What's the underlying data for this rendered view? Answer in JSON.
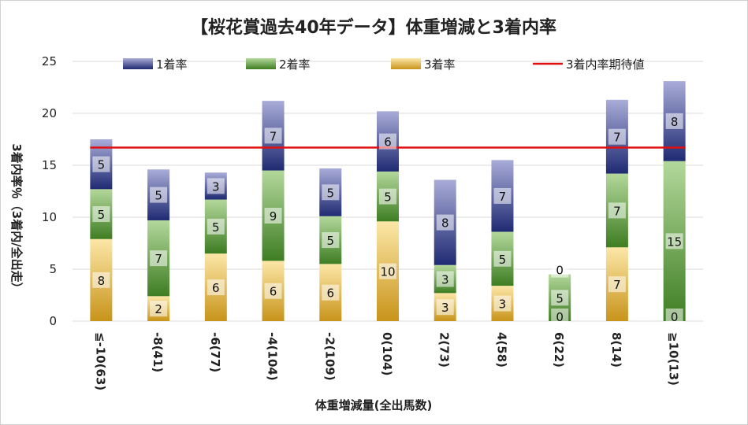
{
  "chart_data": {
    "type": "bar",
    "stacked": true,
    "title": "【桜花賞過去40年データ】体重増減と3着内率",
    "xlabel": "体重増減量(全出馬数)",
    "ylabel": "3着内率％（3着内/全出走）",
    "ylim": [
      0,
      25
    ],
    "yticks": [
      0,
      5,
      10,
      15,
      20,
      25
    ],
    "grid": true,
    "legend_position": "top",
    "categories": [
      "≦-10(63)",
      "-8(41)",
      "-6(77)",
      "-4(104)",
      "-2(109)",
      "0(104)",
      "2(73)",
      "4(58)",
      "6(22)",
      "8(14)",
      "≧10(13)"
    ],
    "series": [
      {
        "name": "3着率",
        "values": [
          7.9,
          2.4,
          6.5,
          5.8,
          5.5,
          9.6,
          2.7,
          3.4,
          0,
          7.1,
          0
        ],
        "labels": [
          "8",
          "2",
          "6",
          "6",
          "6",
          "10",
          "3",
          "3",
          "0",
          "7",
          "0"
        ],
        "color": "#e8b84a"
      },
      {
        "name": "2着率",
        "values": [
          4.8,
          7.3,
          5.2,
          8.7,
          4.6,
          4.8,
          2.7,
          5.2,
          4.5,
          7.1,
          15.4
        ],
        "labels": [
          "5",
          "7",
          "5",
          "9",
          "5",
          "5",
          "3",
          "5",
          "5",
          "7",
          "15"
        ],
        "color": "#5e9a3a"
      },
      {
        "name": "1着率",
        "values": [
          4.8,
          4.9,
          2.6,
          6.7,
          4.6,
          5.8,
          8.2,
          6.9,
          0,
          7.1,
          7.7
        ],
        "labels": [
          "5",
          "5",
          "3",
          "7",
          "5",
          "6",
          "8",
          "7",
          "0",
          "7",
          "8"
        ],
        "color": "#3a4a9a"
      }
    ],
    "reference_line": {
      "name": "3着内率期待値",
      "value": 16.7,
      "color": "#e01010"
    }
  }
}
